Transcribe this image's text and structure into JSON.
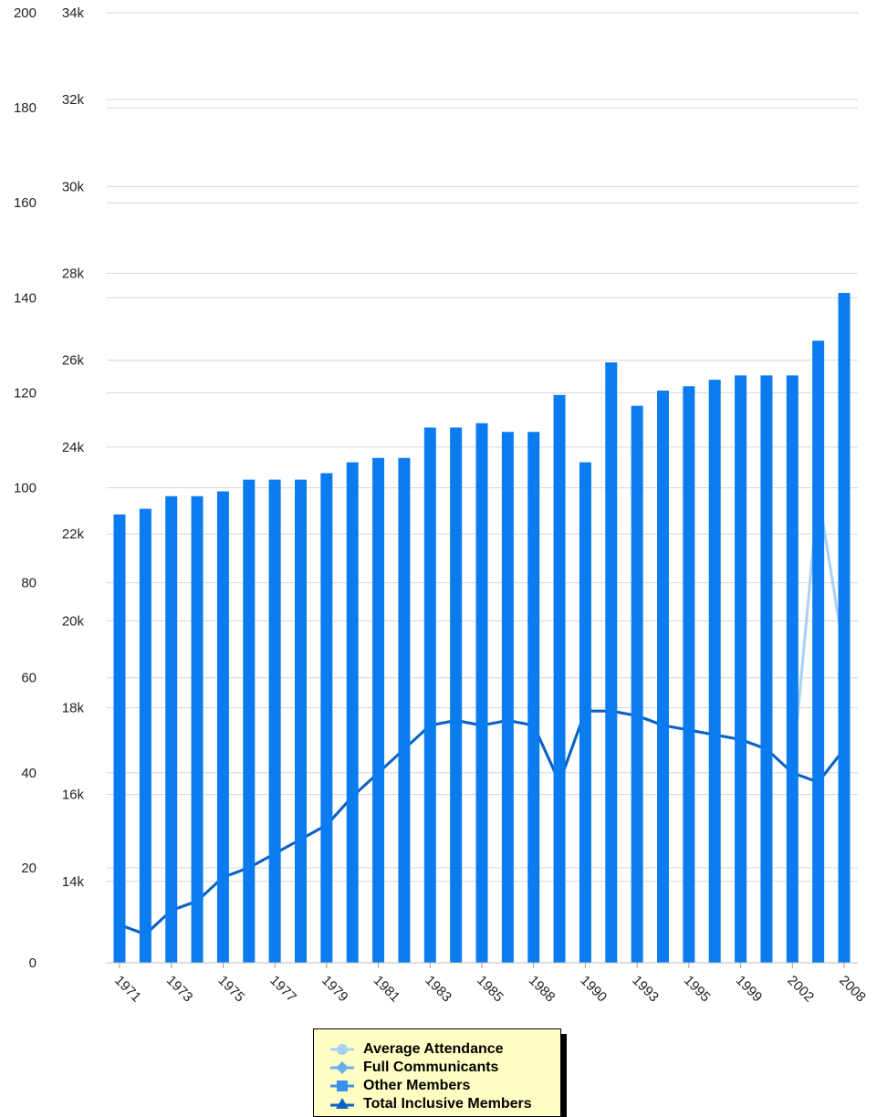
{
  "chart_data": {
    "type": "bar",
    "categories": [
      "1971",
      "1972",
      "1973",
      "1974",
      "1975",
      "1976",
      "1977",
      "1978",
      "1979",
      "1980",
      "1981",
      "1982",
      "1983",
      "1984",
      "1985",
      "1986",
      "1988",
      "1989",
      "1990",
      "1991",
      "1993",
      "1994",
      "1995",
      "1997",
      "1999",
      "2001",
      "2002",
      "2004",
      "2008"
    ],
    "x_tick_labels": [
      "1971",
      "1973",
      "1975",
      "1977",
      "1979",
      "1981",
      "1983",
      "1985",
      "1988",
      "1990",
      "1993",
      "1995",
      "1999",
      "2002",
      "2008"
    ],
    "left_axis": {
      "ticks": [
        "0",
        "20",
        "40",
        "60",
        "80",
        "100",
        "120",
        "140",
        "160",
        "180",
        "200"
      ],
      "ylim": [
        0,
        200
      ]
    },
    "right_axis": {
      "ticks": [
        "14k",
        "16k",
        "18k",
        "20k",
        "22k",
        "24k",
        "26k",
        "28k",
        "30k",
        "32k",
        "34k"
      ],
      "ylim": [
        12000,
        34000
      ]
    },
    "grid": true,
    "legend_position": "bottom",
    "series": [
      {
        "name": "Average Attendance",
        "type": "line",
        "axis": "left",
        "color": "#a8d0f5",
        "values": [
          8,
          6,
          11,
          13,
          18,
          20,
          23,
          26,
          29,
          35,
          40,
          45,
          50,
          51,
          50,
          51,
          50,
          38,
          53,
          53,
          52,
          50,
          49,
          48,
          47,
          45,
          40,
          99,
          65
        ]
      },
      {
        "name": "Full Communicants",
        "type": "line",
        "axis": "left",
        "color": "#6aaef0",
        "values": [
          8,
          6,
          11,
          13,
          18,
          20,
          23,
          26,
          29,
          35,
          40,
          45,
          50,
          51,
          50,
          51,
          50,
          38,
          53,
          53,
          52,
          50,
          49,
          48,
          47,
          45,
          40,
          38,
          45
        ]
      },
      {
        "name": "Other Members",
        "type": "bar",
        "axis": "right",
        "color": "#0a7cf0",
        "values": [
          22450,
          22580,
          22870,
          22870,
          22980,
          23250,
          23250,
          23250,
          23400,
          23650,
          23750,
          23750,
          24450,
          24450,
          24550,
          24350,
          24350,
          25200,
          23650,
          25950,
          24950,
          25300,
          25400,
          25550,
          25650,
          25650,
          25650,
          26450,
          27550
        ]
      },
      {
        "name": "Total Inclusive Members",
        "type": "line",
        "axis": "left",
        "color": "#0b62c4",
        "values": [
          8,
          6,
          11,
          13,
          18,
          20,
          23,
          26,
          29,
          35,
          40,
          45,
          50,
          51,
          50,
          51,
          50,
          38,
          53,
          53,
          52,
          50,
          49,
          48,
          47,
          45,
          40,
          38,
          45
        ]
      }
    ]
  }
}
